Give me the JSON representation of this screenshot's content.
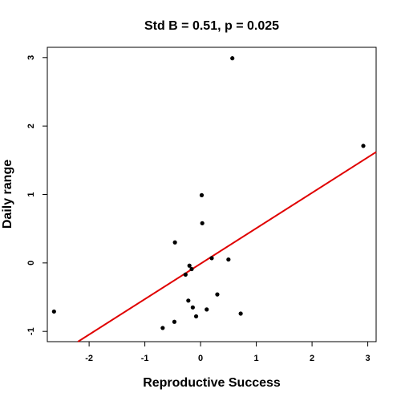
{
  "chart_data": {
    "type": "scatter",
    "title": "Std B = 0.51, p = 0.025",
    "xlabel": "Reproductive Success",
    "ylabel": "Daily range",
    "xlim": [
      -2.75,
      3.15
    ],
    "ylim": [
      -1.15,
      3.15
    ],
    "xticks": [
      -2,
      -1,
      0,
      1,
      2,
      3
    ],
    "yticks": [
      -1,
      0,
      1,
      2,
      3
    ],
    "xtick_labels": [
      "-2",
      "-1",
      "0",
      "1",
      "2",
      "3"
    ],
    "ytick_labels": [
      "-1",
      "0",
      "1",
      "2",
      "3"
    ],
    "grid": false,
    "legend": "none",
    "points": [
      {
        "x": -2.63,
        "y": -0.71
      },
      {
        "x": -0.68,
        "y": -0.95
      },
      {
        "x": -0.47,
        "y": -0.86
      },
      {
        "x": -0.46,
        "y": 0.3
      },
      {
        "x": -0.27,
        "y": -0.17
      },
      {
        "x": -0.22,
        "y": -0.55
      },
      {
        "x": -0.2,
        "y": -0.04
      },
      {
        "x": -0.16,
        "y": -0.09
      },
      {
        "x": -0.14,
        "y": -0.65
      },
      {
        "x": -0.08,
        "y": -0.78
      },
      {
        "x": 0.02,
        "y": 0.99
      },
      {
        "x": 0.03,
        "y": 0.58
      },
      {
        "x": 0.11,
        "y": -0.68
      },
      {
        "x": 0.2,
        "y": 0.07
      },
      {
        "x": 0.3,
        "y": -0.46
      },
      {
        "x": 0.5,
        "y": 0.05
      },
      {
        "x": 0.57,
        "y": 2.99
      },
      {
        "x": 0.72,
        "y": -0.74
      },
      {
        "x": 2.92,
        "y": 1.71
      }
    ],
    "fit_line": {
      "x": [
        -2.2,
        3.15
      ],
      "y": [
        -1.15,
        1.62
      ]
    },
    "colors": {
      "points": "#000000",
      "fit_line": "#e00000",
      "axes": "#000000"
    }
  }
}
